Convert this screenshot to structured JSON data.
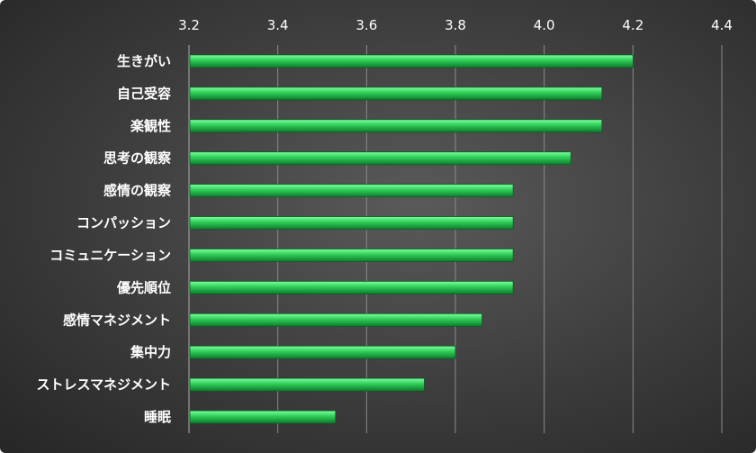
{
  "chart_data": {
    "type": "bar",
    "orientation": "horizontal",
    "title": "",
    "xlabel": "",
    "ylabel": "",
    "xlim": [
      3.2,
      4.4
    ],
    "xticks": [
      "3.2",
      "3.4",
      "3.6",
      "3.8",
      "4.0",
      "4.2",
      "4.4"
    ],
    "x_axis_position": "top",
    "grid": true,
    "legend": "none",
    "categories": [
      "生きがい",
      "自己受容",
      "楽観性",
      "思考の観察",
      "感情の観察",
      "コンパッション",
      "コミュニケーション",
      "優先順位",
      "感情マネジメント",
      "集中力",
      "ストレスマネジメント",
      "睡眠"
    ],
    "values": [
      4.2,
      4.13,
      4.13,
      4.06,
      3.93,
      3.93,
      3.93,
      3.93,
      3.86,
      3.8,
      3.73,
      3.53
    ],
    "colors": {
      "bar": "#2ecc55",
      "bar_light": "#7dffa0",
      "bar_dark": "#0f7a2e",
      "background": "#3c3c3c",
      "text": "#ffffff"
    }
  }
}
